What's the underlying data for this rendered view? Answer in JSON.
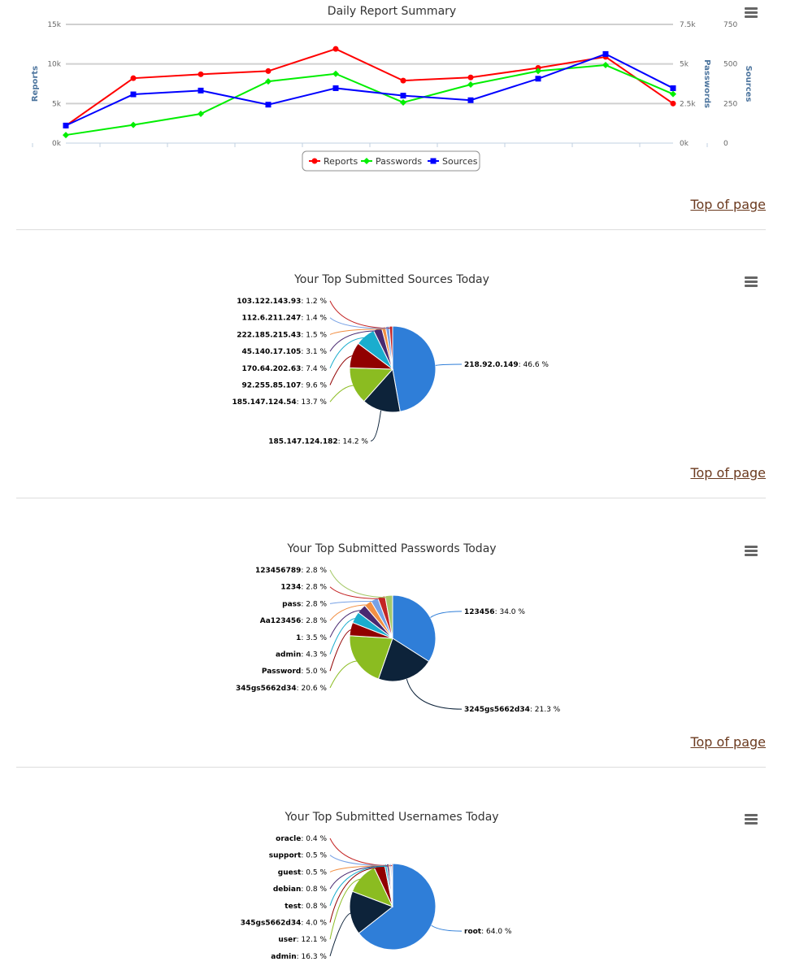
{
  "top_link": "Top of page",
  "chart_data": [
    {
      "type": "line",
      "title": "Daily Report Summary",
      "x": [
        1,
        2,
        3,
        4,
        5,
        6,
        7,
        8,
        9,
        10
      ],
      "axes": [
        {
          "label": "Reports",
          "ticks": [
            "0k",
            "5k",
            "10k",
            "15k"
          ],
          "range": [
            0,
            15000
          ],
          "side": "left"
        },
        {
          "label": "Passwords",
          "ticks": [
            "0k",
            "2.5k",
            "5k",
            "7.5k"
          ],
          "range": [
            0,
            7500
          ],
          "side": "right"
        },
        {
          "label": "Sources",
          "ticks": [
            "0",
            "250",
            "500",
            "750"
          ],
          "range": [
            0,
            750
          ],
          "side": "right"
        }
      ],
      "series": [
        {
          "name": "Reports",
          "color": "#ff0000",
          "marker": "circle",
          "axis": 0,
          "values": [
            2200,
            8200,
            8700,
            9100,
            11900,
            7900,
            8300,
            9500,
            10900,
            5000
          ]
        },
        {
          "name": "Passwords",
          "color": "#00ee00",
          "marker": "diamond",
          "axis": 1,
          "values": [
            510,
            1150,
            1850,
            3900,
            4380,
            2570,
            3700,
            4550,
            4930,
            3100
          ]
        },
        {
          "name": "Sources",
          "color": "#0000ff",
          "marker": "square",
          "axis": 2,
          "values": [
            111,
            308,
            332,
            243,
            347,
            300,
            271,
            407,
            563,
            347
          ]
        }
      ],
      "legend": "bottom-center"
    },
    {
      "type": "pie",
      "title": "Your Top Submitted Sources Today",
      "labels": [
        "218.92.0.149",
        "185.147.124.182",
        "185.147.124.54",
        "92.255.85.107",
        "170.64.202.63",
        "45.140.17.105",
        "222.185.215.43",
        "112.6.211.247",
        "103.122.143.93"
      ],
      "values": [
        46.6,
        14.2,
        13.7,
        9.6,
        7.4,
        3.1,
        1.5,
        1.4,
        1.2
      ],
      "value_labels": [
        "46.6 %",
        "14.2 %",
        "13.7 %",
        "9.6 %",
        "7.4 %",
        "3.1 %",
        "1.5 %",
        "1.4 %",
        "1.2 %"
      ]
    },
    {
      "type": "pie",
      "title": "Your Top Submitted Passwords Today",
      "labels": [
        "123456",
        "3245gs5662d34",
        "345gs5662d34",
        "Password",
        "admin",
        "1",
        "Aa123456",
        "pass",
        "1234",
        "123456789"
      ],
      "values": [
        34.0,
        21.3,
        20.6,
        5.0,
        4.3,
        3.5,
        2.8,
        2.8,
        2.8,
        2.8
      ],
      "value_labels": [
        "34.0 %",
        "21.3 %",
        "20.6 %",
        "5.0 %",
        "4.3 %",
        "3.5 %",
        "2.8 %",
        "2.8 %",
        "2.8 %",
        "2.8 %"
      ]
    },
    {
      "type": "pie",
      "title": "Your Top Submitted Usernames Today",
      "labels": [
        "root",
        "admin",
        "user",
        "345gs5662d34",
        "test",
        "debian",
        "guest",
        "support",
        "oracle"
      ],
      "values": [
        64.0,
        16.3,
        12.1,
        4.0,
        0.8,
        0.8,
        0.5,
        0.5,
        0.4
      ],
      "value_labels": [
        "64.0 %",
        "16.3 %",
        "12.1 %",
        "4.0 %",
        "0.8 %",
        "0.8 %",
        "0.5 %",
        "0.5 %",
        "0.4 %"
      ]
    }
  ],
  "pie_colors": [
    "#2f7ed8",
    "#0d233a",
    "#8bbc21",
    "#910000",
    "#1aadce",
    "#492970",
    "#f28f43",
    "#77a1e5",
    "#c42525",
    "#a6c96a"
  ]
}
